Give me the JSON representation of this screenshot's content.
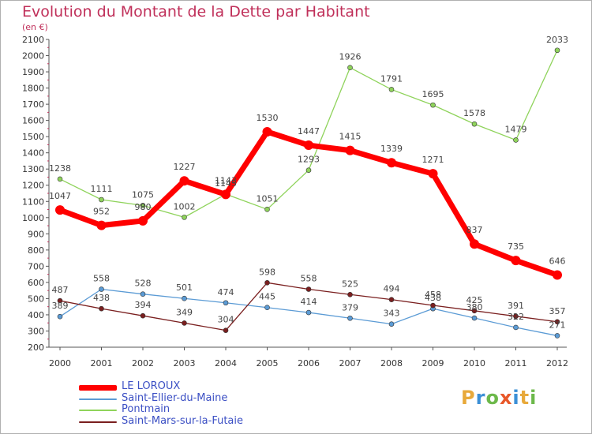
{
  "title": "Evolution du Montant de la Dette par Habitant",
  "subtitle": "(en €)",
  "logo": [
    "P",
    "r",
    "o",
    "x",
    "i",
    "t",
    "i"
  ],
  "logo_colors": [
    "#e8a93a",
    "#3b8fd6",
    "#6cb84a",
    "#e8582a",
    "#3b8fd6",
    "#e8a93a",
    "#6cb84a"
  ],
  "chart_data": {
    "type": "line",
    "title": "Evolution du Montant de la Dette par Habitant",
    "ylabel": "(en €)",
    "x": [
      "2000",
      "2001",
      "2002",
      "2003",
      "2004",
      "2005",
      "2006",
      "2007",
      "2008",
      "2009",
      "2010",
      "2011",
      "2012"
    ],
    "ylim": [
      200,
      2100
    ],
    "yticks": [
      "200",
      "300",
      "400",
      "500",
      "600",
      "700",
      "800",
      "900",
      "1000",
      "1100",
      "1200",
      "1300",
      "1400",
      "1500",
      "1600",
      "1700",
      "1800",
      "1900",
      "2000",
      "2100"
    ],
    "grid": false,
    "legend_position": "bottom-left",
    "series": [
      {
        "name": "LE LOROUX",
        "color": "#ff0000",
        "values": [
          1047,
          952,
          980,
          1227,
          1143,
          1530,
          1447,
          1415,
          1339,
          1271,
          837,
          735,
          646
        ]
      },
      {
        "name": "Saint-Ellier-du-Maine",
        "color": "#5b9bd5",
        "values": [
          389,
          558,
          528,
          501,
          474,
          445,
          414,
          379,
          343,
          438,
          380,
          322,
          271
        ]
      },
      {
        "name": "Pontmain",
        "color": "#8fd35b",
        "values": [
          1238,
          1111,
          1075,
          1002,
          1145,
          1051,
          1293,
          1926,
          1791,
          1695,
          1578,
          1479,
          2033
        ]
      },
      {
        "name": "Saint-Mars-sur-la-Futaie",
        "color": "#7a1f1f",
        "values": [
          487,
          438,
          394,
          349,
          304,
          598,
          558,
          525,
          494,
          458,
          425,
          391,
          357
        ]
      }
    ]
  }
}
